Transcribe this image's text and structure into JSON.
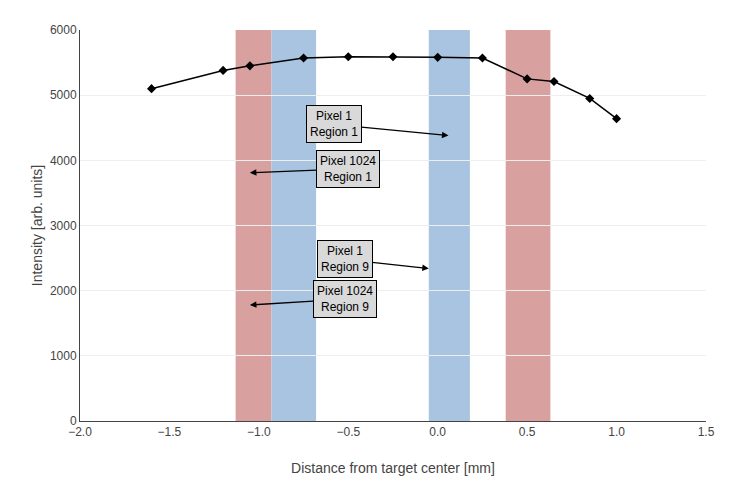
{
  "chart_data": {
    "type": "line",
    "xlabel": "Distance from target center [mm]",
    "ylabel": "Intensity [arb. units]",
    "x": [
      -1.6,
      -1.2,
      -1.05,
      -0.75,
      -0.5,
      -0.25,
      0.0,
      0.25,
      0.5,
      0.65,
      0.85,
      1.0
    ],
    "values": [
      5100,
      5380,
      5450,
      5570,
      5590,
      5590,
      5580,
      5570,
      5250,
      5210,
      4950,
      4640
    ],
    "color": "#000000",
    "marker": "diamond",
    "xlim": [
      -2,
      1.5
    ],
    "ylim": [
      0,
      6000
    ],
    "xticks": [
      {
        "value": -2,
        "label": "−2.0"
      },
      {
        "value": -1.5,
        "label": "−1.5"
      },
      {
        "value": -1,
        "label": "−1.0"
      },
      {
        "value": -0.5,
        "label": "−0.5"
      },
      {
        "value": 0,
        "label": "0.0"
      },
      {
        "value": 0.5,
        "label": "0.5"
      },
      {
        "value": 1,
        "label": "1.0"
      },
      {
        "value": 1.5,
        "label": "1.5"
      }
    ],
    "yticks": [
      0,
      1000,
      2000,
      3000,
      4000,
      5000,
      6000
    ],
    "grid": true,
    "bands": [
      {
        "color": "#d9a0a0",
        "spans": [
          [
            -1.13,
            -0.93
          ],
          [
            0.38,
            0.63
          ]
        ]
      },
      {
        "color": "#a8c4e0",
        "spans": [
          [
            -0.93,
            -0.68
          ],
          [
            -0.05,
            0.18
          ]
        ]
      }
    ],
    "annotations": [
      {
        "text": "Pixel 1\nRegion 1",
        "x": -0.58,
        "y": 4550,
        "arrow_x": 0.06,
        "arrow_y": 4380
      },
      {
        "text": "Pixel 1024\nRegion 1",
        "x": -0.5,
        "y": 3870,
        "arrow_x": -1.05,
        "arrow_y": 3810
      },
      {
        "text": "Pixel 1\nRegion 9",
        "x": -0.52,
        "y": 2480,
        "arrow_x": -0.05,
        "arrow_y": 2340
      },
      {
        "text": "Pixel 1024\nRegion 9",
        "x": -0.52,
        "y": 1870,
        "arrow_x": -1.05,
        "arrow_y": 1780
      }
    ]
  }
}
